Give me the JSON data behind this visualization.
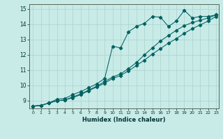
{
  "xlabel": "Humidex (Indice chaleur)",
  "ylabel": "",
  "xlim": [
    -0.5,
    23.3
  ],
  "ylim": [
    8.5,
    15.3
  ],
  "xticks": [
    0,
    1,
    2,
    3,
    4,
    5,
    6,
    7,
    8,
    9,
    10,
    11,
    12,
    13,
    14,
    15,
    16,
    17,
    18,
    19,
    20,
    21,
    22,
    23
  ],
  "yticks": [
    9,
    10,
    11,
    12,
    13,
    14,
    15
  ],
  "bg_color": "#c8ebe8",
  "grid_color": "#aed6d2",
  "line_color": "#006060",
  "line1_x": [
    0,
    1,
    2,
    3,
    4,
    5,
    6,
    7,
    8,
    9,
    10,
    11,
    12,
    13,
    14,
    15,
    16,
    17,
    18,
    19,
    20,
    21,
    22,
    23
  ],
  "line1_y": [
    8.65,
    8.7,
    8.85,
    9.1,
    9.15,
    9.4,
    9.6,
    9.85,
    10.1,
    10.45,
    12.55,
    12.45,
    13.5,
    13.85,
    14.05,
    14.5,
    14.45,
    13.85,
    14.2,
    14.9,
    14.4,
    14.5,
    14.5,
    14.6
  ],
  "line2_x": [
    0,
    1,
    2,
    3,
    4,
    5,
    6,
    7,
    8,
    9,
    10,
    11,
    12,
    13,
    14,
    15,
    16,
    17,
    18,
    19,
    20,
    21,
    22,
    23
  ],
  "line2_y": [
    8.65,
    8.7,
    8.85,
    9.0,
    9.05,
    9.25,
    9.45,
    9.7,
    9.95,
    10.25,
    10.55,
    10.75,
    11.1,
    11.5,
    12.0,
    12.45,
    12.9,
    13.25,
    13.6,
    13.9,
    14.1,
    14.25,
    14.4,
    14.6
  ],
  "line3_x": [
    0,
    1,
    2,
    3,
    4,
    5,
    6,
    7,
    8,
    9,
    10,
    11,
    12,
    13,
    14,
    15,
    16,
    17,
    18,
    19,
    20,
    21,
    22,
    23
  ],
  "line3_y": [
    8.65,
    8.7,
    8.85,
    9.0,
    9.05,
    9.2,
    9.4,
    9.65,
    9.9,
    10.15,
    10.45,
    10.65,
    10.95,
    11.3,
    11.65,
    12.05,
    12.4,
    12.75,
    13.05,
    13.4,
    13.7,
    13.95,
    14.2,
    14.5
  ]
}
